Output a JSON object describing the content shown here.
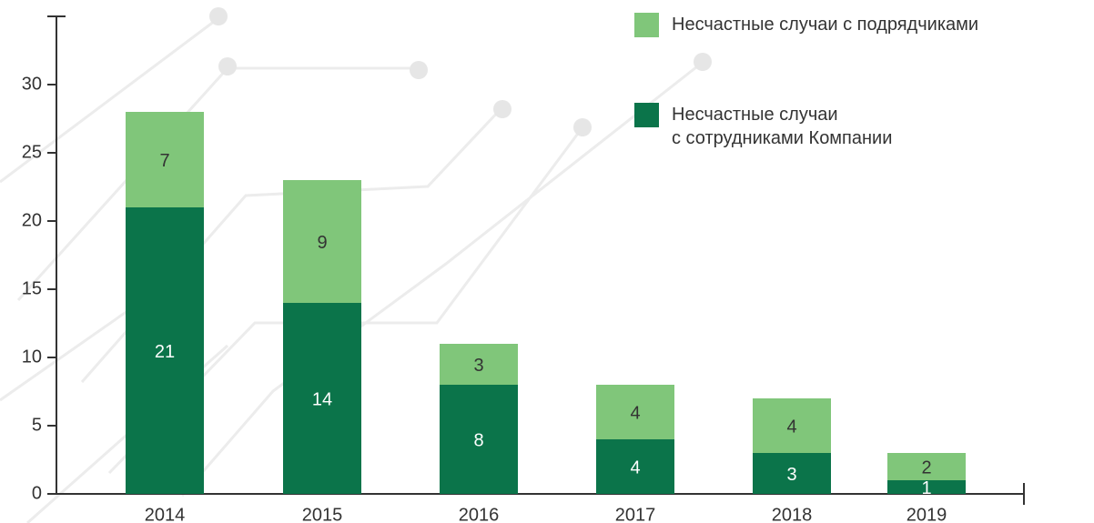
{
  "chart_data": {
    "type": "stacked_bar",
    "categories": [
      "2014",
      "2015",
      "2016",
      "2017",
      "2018",
      "2019"
    ],
    "series": [
      {
        "name": "Несчастные случаи\nс сотрудниками Компании",
        "color": "#0b744a",
        "values": [
          21,
          14,
          8,
          4,
          3,
          1
        ]
      },
      {
        "name": "Несчастные случаи с подрядчиками",
        "color": "#80c67a",
        "values": [
          7,
          9,
          3,
          4,
          4,
          2
        ]
      }
    ],
    "ylim": [
      0,
      35
    ],
    "yticks": [
      0,
      5,
      10,
      15,
      20,
      25,
      30
    ]
  }
}
